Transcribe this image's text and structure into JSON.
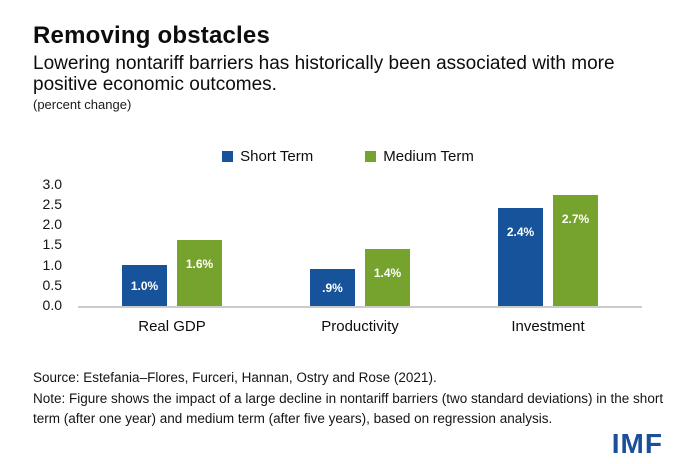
{
  "title": "Removing obstacles",
  "subtitle": "Lowering nontariff barriers has historically been associated with more positive economic outcomes.",
  "unit_note": "(percent change)",
  "chart_data": {
    "type": "bar",
    "title": "Removing obstacles",
    "subtitle": "Lowering nontariff barriers has historically been associated with more positive economic outcomes.",
    "units": "percent change",
    "categories": [
      "Real GDP",
      "Productivity",
      "Investment"
    ],
    "series": [
      {
        "name": "Short Term",
        "color": "#16539b",
        "values": [
          1.0,
          0.9,
          2.4
        ],
        "data_labels": [
          "1.0%",
          ".9%",
          "2.4%"
        ]
      },
      {
        "name": "Medium Term",
        "color": "#76a22e",
        "values": [
          1.6,
          1.4,
          2.7
        ],
        "data_labels": [
          "1.6%",
          "1.4%",
          "2.7%"
        ]
      }
    ],
    "ylim": [
      0,
      3
    ],
    "yticks": [
      "3.0",
      "2.5",
      "2.0",
      "1.5",
      "1.0",
      "0.5",
      "0.0"
    ],
    "grid": false,
    "legend_position": "top",
    "axis_line_color": "#cbcbcb"
  },
  "footer": {
    "source": "Source: Estefania–Flores, Furceri, Hannan, Ostry and Rose (2021).",
    "note": "Note: Figure shows the impact of a large decline in nontariff barriers (two standard deviations) in the short term (after one year) and medium term (after five years), based on regression analysis.",
    "logo": "IMF"
  }
}
